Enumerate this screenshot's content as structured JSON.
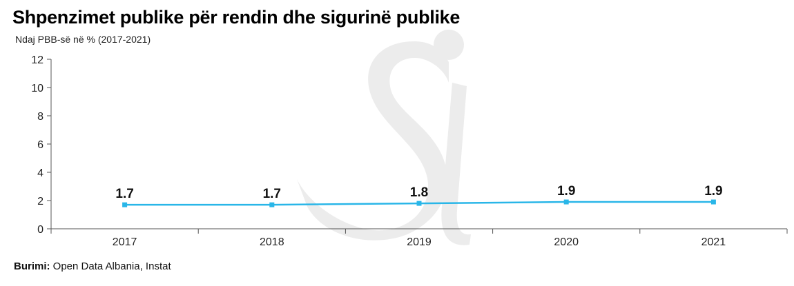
{
  "source": {
    "label": "Burimi:",
    "text": " Open Data Albania, Instat"
  },
  "colors": {
    "line": "#29b6e8",
    "axis": "#555555",
    "watermark": "#ececec"
  },
  "watermark_icon": "si-logo-watermark",
  "chart_data": {
    "type": "line",
    "title": "Shpenzimet publike për rendin dhe sigurinë publike",
    "subtitle": "Ndaj PBB-së në % (2017-2021)",
    "xlabel": "",
    "ylabel": "",
    "categories": [
      "2017",
      "2018",
      "2019",
      "2020",
      "2021"
    ],
    "series": [
      {
        "values": [
          1.7,
          1.7,
          1.8,
          1.9,
          1.9
        ],
        "labels": [
          "1.7",
          "1.7",
          "1.8",
          "1.9",
          "1.9"
        ]
      }
    ],
    "ylim": [
      0,
      12
    ],
    "yticks": [
      0,
      2,
      4,
      6,
      8,
      10,
      12
    ],
    "grid": false,
    "legend": "none"
  }
}
